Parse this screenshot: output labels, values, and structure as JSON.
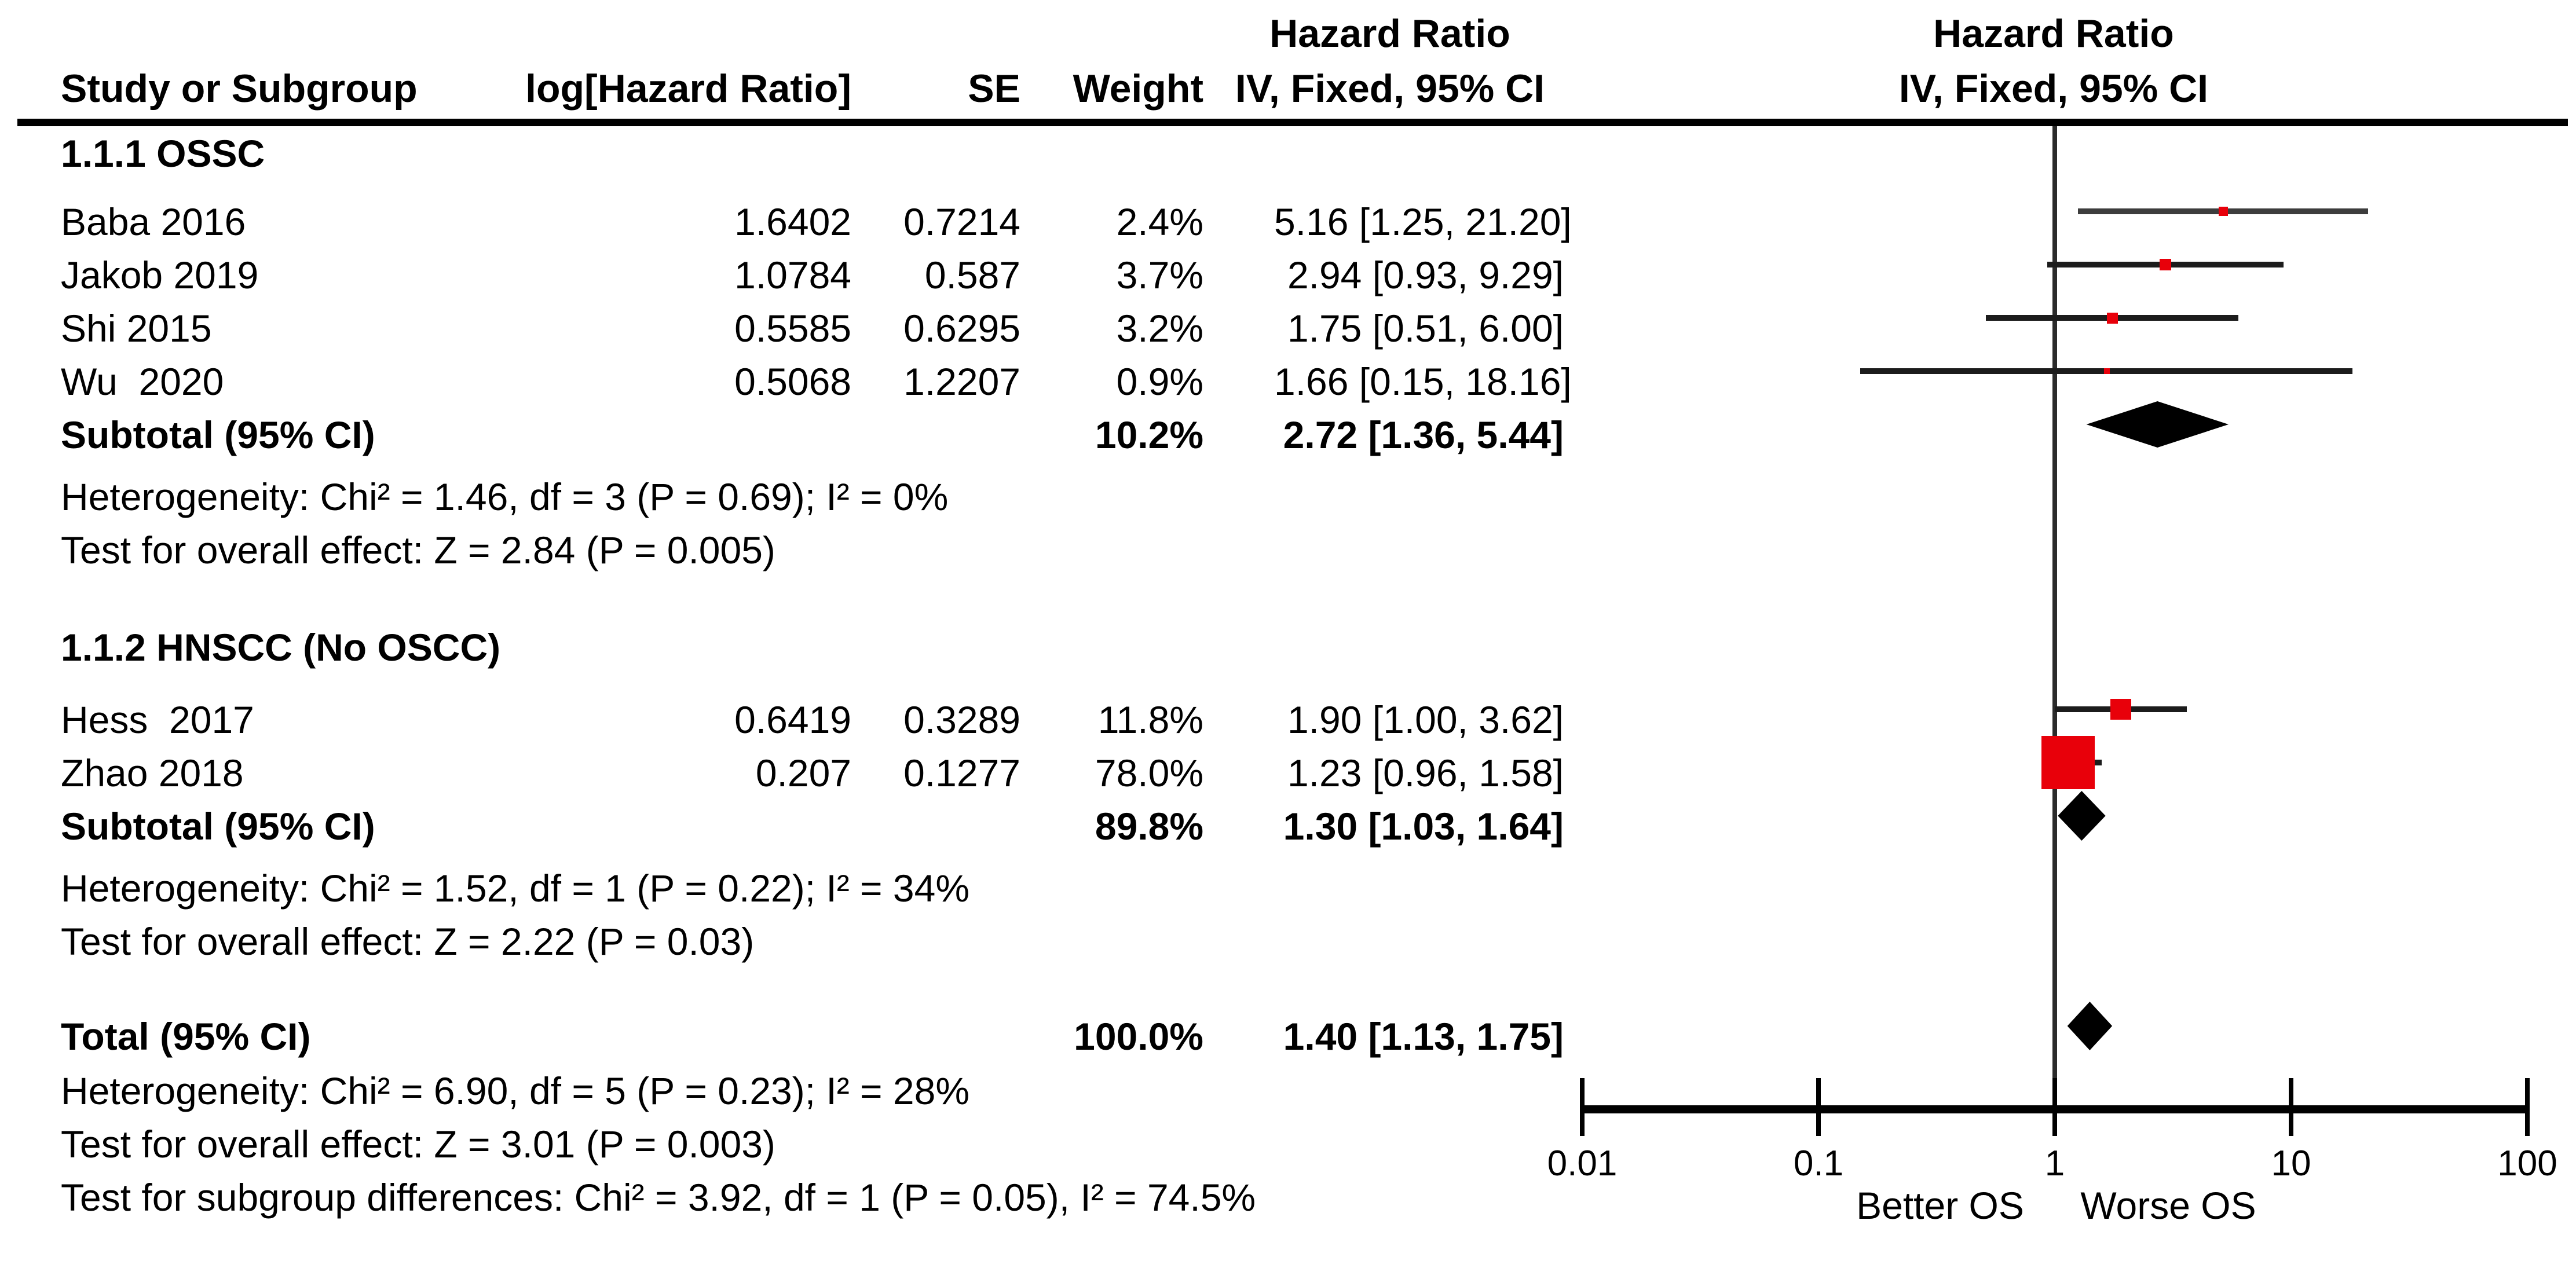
{
  "header": {
    "hazard_ratio": "Hazard Ratio",
    "method": "IV, Fixed, 95% CI",
    "col_study": "Study or Subgroup",
    "col_loghr": "log[Hazard Ratio]",
    "col_se": "SE",
    "col_weight": "Weight",
    "col_ci": "IV, Fixed, 95% CI"
  },
  "rows": [
    {
      "label": "1.1.1 OSSC"
    },
    {
      "label": "Baba 2016",
      "loghr": "1.6402",
      "se": "0.7214",
      "weight": "2.4%",
      "ci": "5.16 [1.25, 21.20]"
    },
    {
      "label": "Jakob 2019",
      "loghr": "1.0784",
      "se": "0.587",
      "weight": "3.7%",
      "ci": "2.94 [0.93, 9.29]"
    },
    {
      "label": "Shi 2015",
      "loghr": "0.5585",
      "se": "0.6295",
      "weight": "3.2%",
      "ci": "1.75 [0.51, 6.00]"
    },
    {
      "label": "Wu  2020",
      "loghr": "0.5068",
      "se": "1.2207",
      "weight": "0.9%",
      "ci": "1.66 [0.15, 18.16]"
    },
    {
      "label": "Subtotal (95% CI)",
      "weight": "10.2%",
      "ci": "2.72 [1.36, 5.44]"
    },
    {
      "label": "Heterogeneity: Chi² = 1.46, df = 3 (P = 0.69); I² = 0%"
    },
    {
      "label": "Test for overall effect: Z = 2.84 (P = 0.005)"
    },
    {
      "label": "1.1.2 HNSCC (No OSCC)"
    },
    {
      "label": "Hess  2017",
      "loghr": "0.6419",
      "se": "0.3289",
      "weight": "11.8%",
      "ci": "1.90 [1.00, 3.62]"
    },
    {
      "label": "Zhao 2018",
      "loghr": "0.207",
      "se": "0.1277",
      "weight": "78.0%",
      "ci": "1.23 [0.96, 1.58]"
    },
    {
      "label": "Subtotal (95% CI)",
      "weight": "89.8%",
      "ci": "1.30 [1.03, 1.64]"
    },
    {
      "label": "Heterogeneity: Chi² = 1.52, df = 1 (P = 0.22); I² = 34%"
    },
    {
      "label": "Test for overall effect: Z = 2.22 (P = 0.03)"
    },
    {
      "label": "Total (95% CI)",
      "weight": "100.0%",
      "ci": "1.40 [1.13, 1.75]"
    },
    {
      "label": "Heterogeneity: Chi² = 6.90, df = 5 (P = 0.23); I² = 28%"
    },
    {
      "label": "Test for overall effect: Z = 3.01 (P = 0.003)"
    },
    {
      "label": "Test for subgroup differences: Chi² = 3.92, df = 1 (P = 0.05), I² = 74.5%"
    }
  ],
  "axis": {
    "tick_labels": [
      "0.01",
      "0.1",
      "1",
      "10",
      "100"
    ],
    "better": "Better OS",
    "worse": "Worse OS"
  },
  "chart_data": {
    "type": "forest",
    "x_scale": "log10",
    "x_ticks": [
      0.01,
      0.1,
      1,
      10,
      100
    ],
    "null_line": 1,
    "effect_measure": "Hazard Ratio",
    "model": "IV, Fixed, 95% CI",
    "direction_labels": {
      "left": "Better OS",
      "right": "Worse OS"
    },
    "marker_color": "#e8000a",
    "studies": [
      {
        "name": "Baba 2016",
        "group": "1.1.1 OSSC",
        "hr": 5.16,
        "low": 1.25,
        "high": 21.2,
        "weight_pct": 2.4
      },
      {
        "name": "Jakob 2019",
        "group": "1.1.1 OSSC",
        "hr": 2.94,
        "low": 0.93,
        "high": 9.29,
        "weight_pct": 3.7
      },
      {
        "name": "Shi 2015",
        "group": "1.1.1 OSSC",
        "hr": 1.75,
        "low": 0.51,
        "high": 6.0,
        "weight_pct": 3.2
      },
      {
        "name": "Wu  2020",
        "group": "1.1.1 OSSC",
        "hr": 1.66,
        "low": 0.15,
        "high": 18.16,
        "weight_pct": 0.9
      },
      {
        "name": "Hess  2017",
        "group": "1.1.2 HNSCC (No OSCC)",
        "hr": 1.9,
        "low": 1.0,
        "high": 3.62,
        "weight_pct": 11.8
      },
      {
        "name": "Zhao 2018",
        "group": "1.1.2 HNSCC (No OSCC)",
        "hr": 1.23,
        "low": 0.96,
        "high": 1.58,
        "weight_pct": 78.0
      }
    ],
    "subtotals": [
      {
        "label": "Subtotal (95% CI)",
        "group": "1.1.1 OSSC",
        "hr": 2.72,
        "low": 1.36,
        "high": 5.44,
        "weight_pct": 10.2
      },
      {
        "label": "Subtotal (95% CI)",
        "group": "1.1.2 HNSCC (No OSCC)",
        "hr": 1.3,
        "low": 1.03,
        "high": 1.64,
        "weight_pct": 89.8
      }
    ],
    "total": {
      "label": "Total (95% CI)",
      "hr": 1.4,
      "low": 1.13,
      "high": 1.75,
      "weight_pct": 100.0
    }
  }
}
